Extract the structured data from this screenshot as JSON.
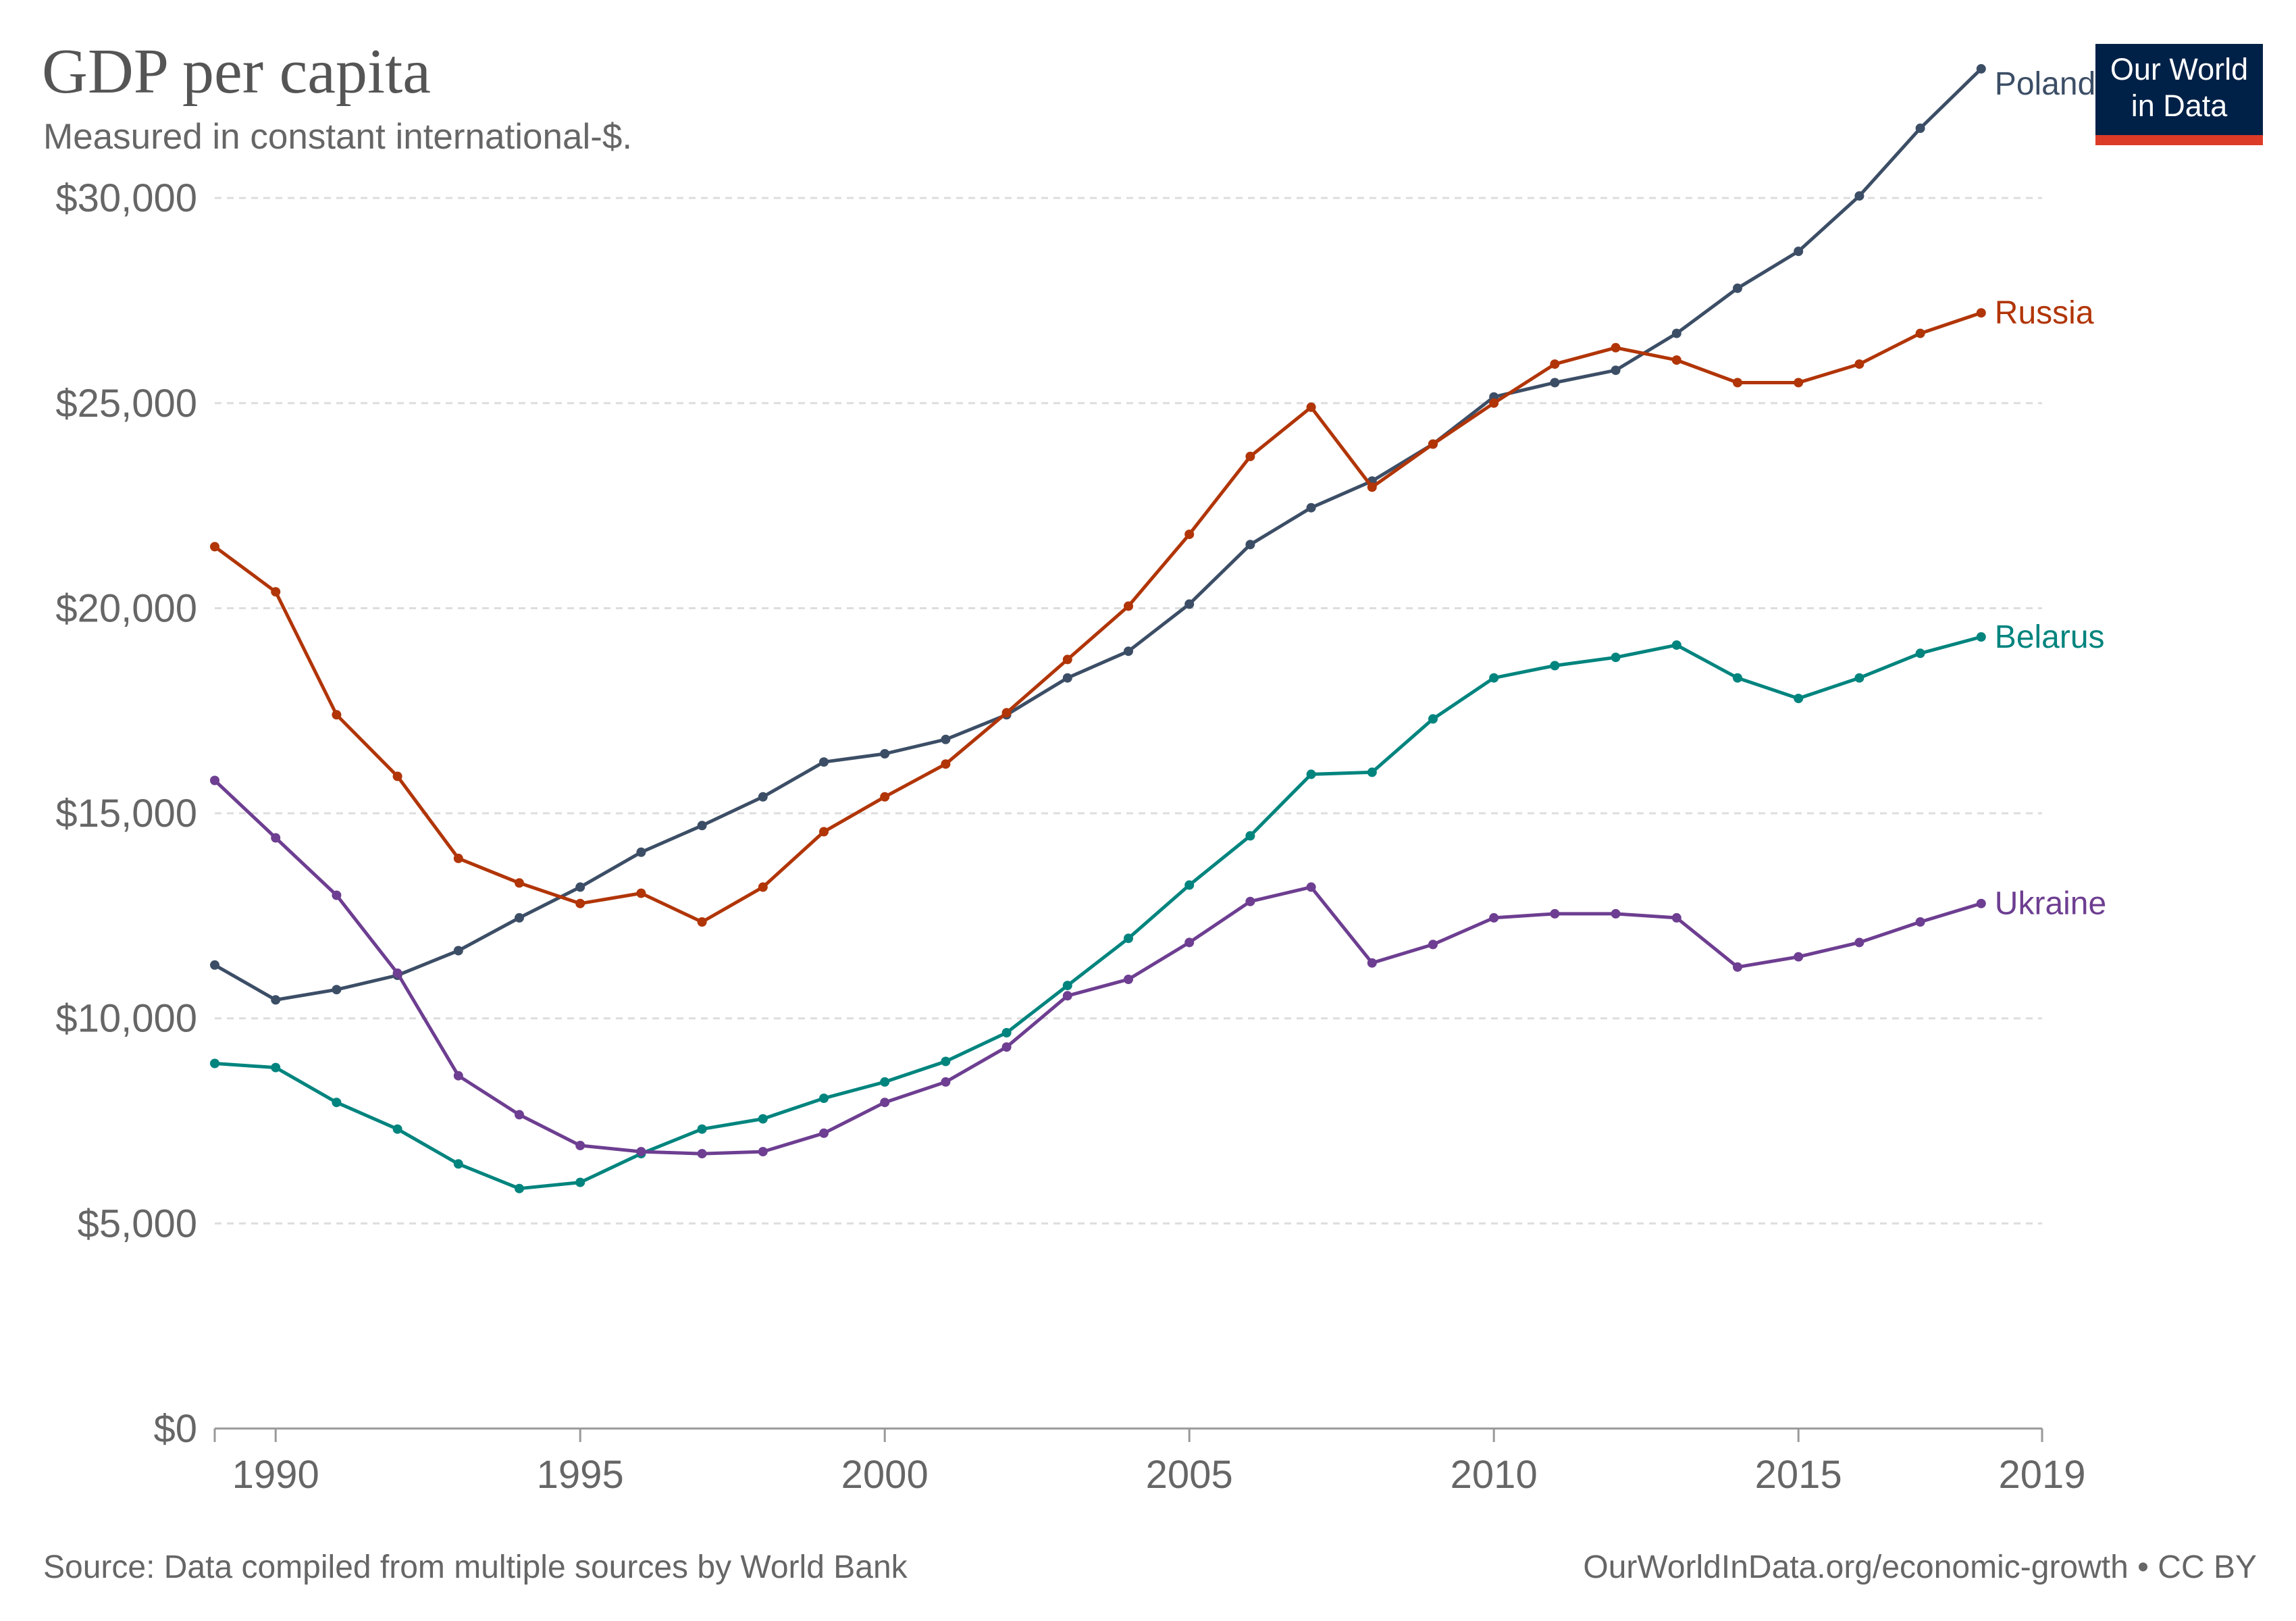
{
  "title": "GDP per capita",
  "subtitle": "Measured in constant international-$.",
  "logo": {
    "line1": "Our World",
    "line2": "in Data"
  },
  "footer": {
    "source": "Source: Data compiled from multiple sources by World Bank",
    "url": "OurWorldInData.org/economic-growth • CC BY"
  },
  "colors": {
    "Poland": "#3c4e66",
    "Russia": "#b13507",
    "Belarus": "#00847e",
    "Ukraine": "#6d3e91",
    "grid": "#dddddd",
    "axis": "#999999",
    "brand": "#002147",
    "brand_accent": "#dc3b28"
  },
  "chart_data": {
    "type": "line",
    "title": "GDP per capita",
    "subtitle": "Measured in constant international-$.",
    "xlabel": "",
    "ylabel": "",
    "xlim": [
      1989,
      2019
    ],
    "ylim": [
      0,
      33000
    ],
    "grid": "horizontal dashed",
    "legend": "inline labels at line ends (right)",
    "y_ticks": [
      0,
      5000,
      10000,
      15000,
      20000,
      25000,
      30000
    ],
    "y_tick_labels": [
      "$0",
      "$5,000",
      "$10,000",
      "$15,000",
      "$20,000",
      "$25,000",
      "$30,000"
    ],
    "x_ticks": [
      1990,
      1995,
      2000,
      2005,
      2010,
      2015,
      2019
    ],
    "x_tick_labels": [
      "1990",
      "1995",
      "2000",
      "2005",
      "2010",
      "2015",
      "2019"
    ],
    "x": [
      1989,
      1990,
      1991,
      1992,
      1993,
      1994,
      1995,
      1996,
      1997,
      1998,
      1999,
      2000,
      2001,
      2002,
      2003,
      2004,
      2005,
      2006,
      2007,
      2008,
      2009,
      2010,
      2011,
      2012,
      2013,
      2014,
      2015,
      2016,
      2017,
      2018,
      2019
    ],
    "series": [
      {
        "name": "Poland",
        "values": [
          11300,
          10450,
          10700,
          11050,
          11650,
          12450,
          13200,
          14050,
          14700,
          15400,
          16250,
          16450,
          16800,
          17400,
          18300,
          18950,
          20100,
          21550,
          22450,
          23100,
          24000,
          25150,
          25500,
          25800,
          26700,
          27800,
          28700,
          30050,
          31700,
          33150,
          null
        ]
      },
      {
        "name": "Russia",
        "values": [
          21500,
          20400,
          17400,
          15900,
          13900,
          13300,
          12800,
          13050,
          12350,
          13200,
          14550,
          15400,
          16200,
          17450,
          18750,
          20050,
          21800,
          23700,
          24900,
          22950,
          24000,
          25000,
          25950,
          26350,
          26050,
          25500,
          25500,
          25950,
          26700,
          27200,
          null
        ]
      },
      {
        "name": "Belarus",
        "values": [
          8900,
          8800,
          7950,
          7300,
          6450,
          5850,
          6000,
          6700,
          7300,
          7550,
          8050,
          8450,
          8950,
          9650,
          10800,
          11950,
          13250,
          14450,
          15950,
          16000,
          17300,
          18300,
          18600,
          18800,
          19100,
          18300,
          17800,
          18300,
          18900,
          19300,
          null
        ]
      },
      {
        "name": "Ukraine",
        "values": [
          15800,
          14400,
          13000,
          11100,
          8600,
          7650,
          6900,
          6750,
          6700,
          6750,
          7200,
          7950,
          8450,
          9300,
          10550,
          10950,
          11850,
          12850,
          13200,
          11350,
          11800,
          12450,
          12550,
          12550,
          12450,
          11250,
          11500,
          11850,
          12350,
          12800,
          null
        ]
      }
    ]
  }
}
